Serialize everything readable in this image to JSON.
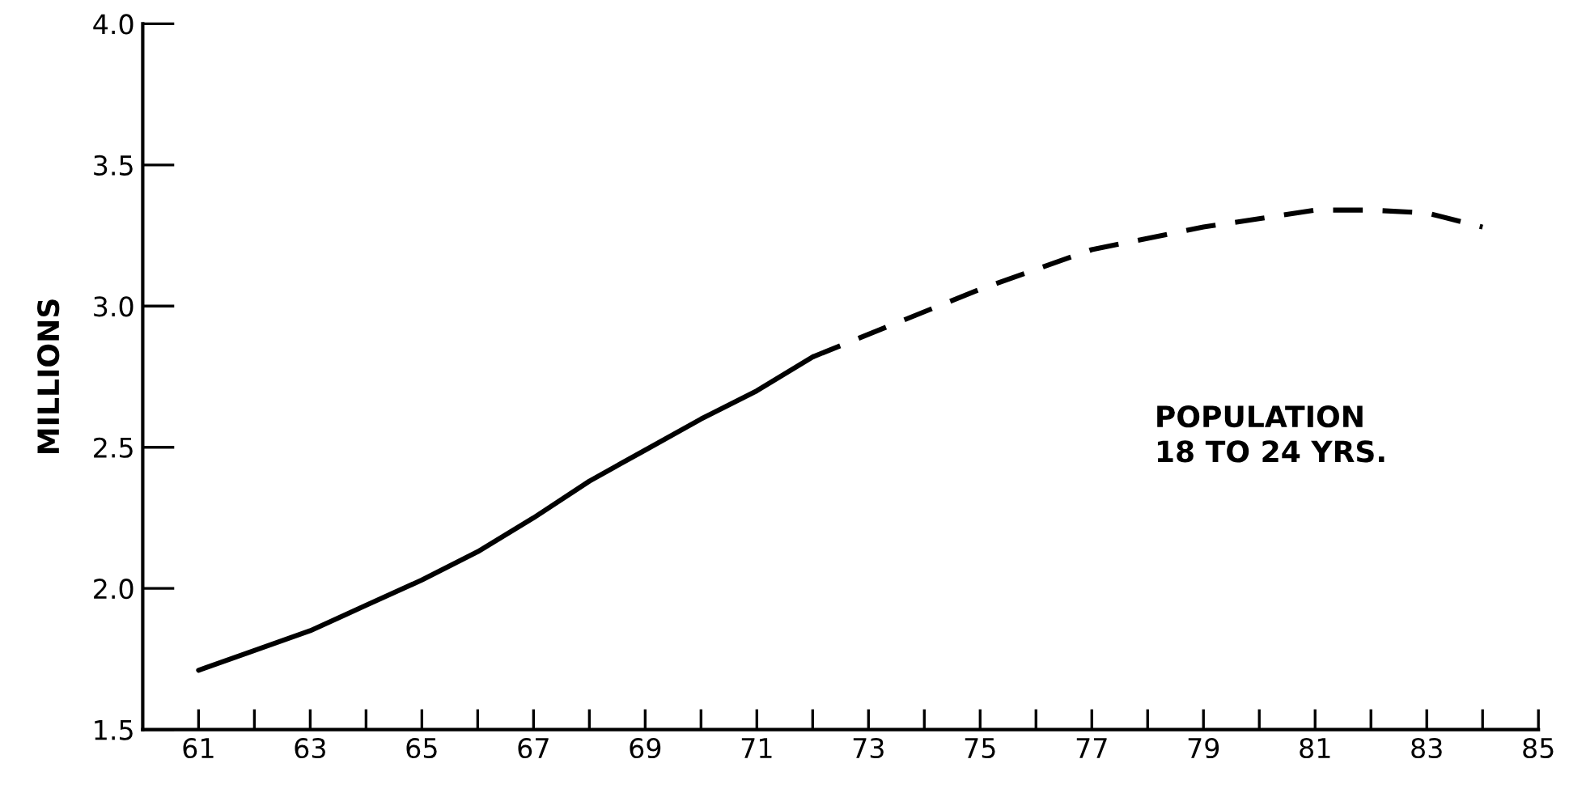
{
  "chart_data": {
    "type": "line",
    "ylabel": "MILLIONS",
    "annotations": [
      "POPULATION\n18 TO 24 YRS."
    ],
    "series": [
      {
        "color": "#000000",
        "line_style": "solid",
        "x": [
          61,
          62,
          63,
          64,
          65,
          66,
          67,
          68,
          69,
          70,
          71,
          72
        ],
        "values": [
          1.71,
          1.78,
          1.85,
          1.94,
          2.03,
          2.13,
          2.25,
          2.38,
          2.49,
          2.6,
          2.7,
          2.82
        ]
      },
      {
        "color": "#000000",
        "line_style": "dashed",
        "x": [
          72,
          73,
          75,
          77,
          79,
          81,
          82,
          83,
          84
        ],
        "values": [
          2.82,
          2.9,
          3.06,
          3.2,
          3.28,
          3.34,
          3.34,
          3.33,
          3.28
        ]
      }
    ],
    "xlim": [
      60,
      85
    ],
    "ylim": [
      1.5,
      4.0
    ],
    "xticks": [
      61,
      {
        "value": 62,
        "label": null
      },
      63,
      {
        "value": 64,
        "label": null
      },
      65,
      {
        "value": 66,
        "label": null
      },
      67,
      {
        "value": 68,
        "label": null
      },
      69,
      {
        "value": 70,
        "label": null
      },
      71,
      {
        "value": 72,
        "label": null
      },
      73,
      {
        "value": 74,
        "label": null
      },
      75,
      {
        "value": 76,
        "label": null
      },
      77,
      {
        "value": 78,
        "label": null
      },
      79,
      {
        "value": 80,
        "label": null
      },
      81,
      {
        "value": 82,
        "label": null
      },
      83,
      {
        "value": 84,
        "label": null
      },
      85
    ],
    "yticks": [
      1.5,
      {
        "value": 2,
        "label": "2.0"
      },
      2.5,
      {
        "value": 3,
        "label": "3.0"
      },
      3.5,
      {
        "value": 4,
        "label": "4.0"
      }
    ],
    "grid": false,
    "legend": false
  }
}
